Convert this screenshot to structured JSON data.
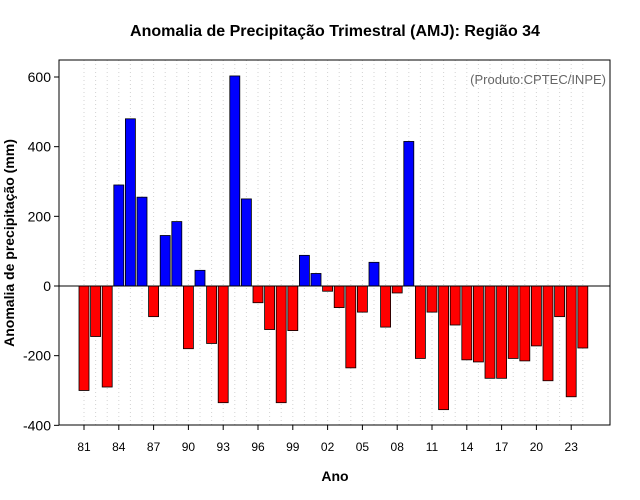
{
  "chart_data": {
    "type": "bar",
    "title": "Anomalia de Precipitação Trimestral (AMJ): Região 34",
    "xlabel": "Ano",
    "ylabel": "Anomalia de precipitação (mm)",
    "credit": "(Produto:CPTEC/INPE)",
    "ylim": [
      -400,
      650
    ],
    "yticks": [
      -400,
      -200,
      0,
      200,
      400,
      600
    ],
    "xtick_labels": [
      "81",
      "84",
      "87",
      "90",
      "93",
      "96",
      "99",
      "02",
      "05",
      "08",
      "11",
      "14",
      "17",
      "20",
      "23"
    ],
    "years": [
      1981,
      1982,
      1983,
      1984,
      1985,
      1986,
      1987,
      1988,
      1989,
      1990,
      1991,
      1992,
      1993,
      1994,
      1995,
      1996,
      1997,
      1998,
      1999,
      2000,
      2001,
      2002,
      2003,
      2004,
      2005,
      2006,
      2007,
      2008,
      2009,
      2010,
      2011,
      2012,
      2013,
      2014,
      2015,
      2016,
      2017,
      2018,
      2019,
      2020,
      2021,
      2022,
      2023,
      2024
    ],
    "values": [
      -300,
      -145,
      -290,
      290,
      480,
      255,
      -88,
      145,
      185,
      -180,
      45,
      -165,
      -335,
      603,
      250,
      -48,
      -125,
      -335,
      -128,
      88,
      36,
      -15,
      -62,
      -235,
      -75,
      68,
      -118,
      -20,
      415,
      -208,
      -75,
      -355,
      -112,
      -212,
      -218,
      -265,
      -265,
      -208,
      -215,
      -172,
      -272,
      -88,
      -318,
      -178
    ],
    "colors": {
      "positive": "#0000ff",
      "negative": "#ff0000",
      "zero_line": "#000000",
      "grid": "#d3d3d3"
    }
  }
}
